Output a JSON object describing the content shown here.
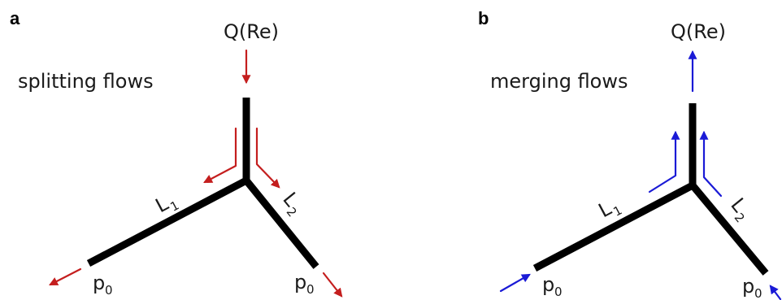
{
  "panels": [
    {
      "letter": "a",
      "title": "splitting flows",
      "flux_label": "Q(Re)",
      "branch1_label": "L",
      "branch1_sub": "1",
      "branch2_label": "L",
      "branch2_sub": "2",
      "outlet_left": "p",
      "outlet_left_sub": "0",
      "outlet_right": "p",
      "outlet_right_sub": "0",
      "arrow_color": "#c41e1e"
    },
    {
      "letter": "b",
      "title": "merging flows",
      "flux_label": "Q(Re)",
      "branch1_label": "L",
      "branch1_sub": "1",
      "branch2_label": "L",
      "branch2_sub": "2",
      "outlet_left": "p",
      "outlet_left_sub": "0",
      "outlet_right": "p",
      "outlet_right_sub": "0",
      "arrow_color": "#1a1ad6"
    }
  ]
}
